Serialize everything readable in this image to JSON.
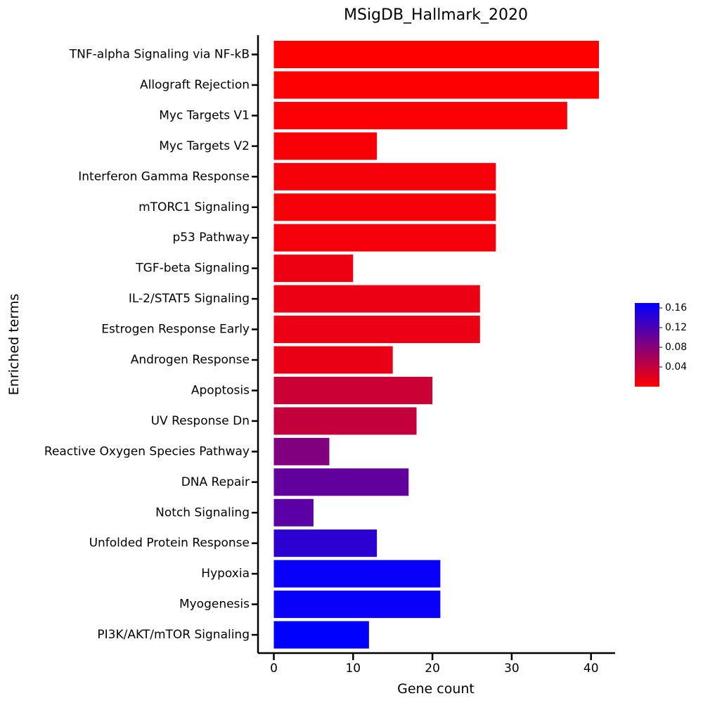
{
  "chart_data": {
    "type": "bar",
    "orientation": "horizontal",
    "title": "MSigDB_Hallmark_2020",
    "xlabel": "Gene count",
    "ylabel": "Enriched terms",
    "xlim": [
      -2,
      43
    ],
    "xticks": [
      0,
      10,
      20,
      30,
      40
    ],
    "grid": false,
    "categories": [
      "TNF-alpha Signaling via NF-kB",
      "Allograft Rejection",
      "Myc Targets V1",
      "Myc Targets V2",
      "Interferon Gamma Response",
      "mTORC1 Signaling",
      "p53 Pathway",
      "TGF-beta Signaling",
      "IL-2/STAT5 Signaling",
      "Estrogen Response Early",
      "Androgen Response",
      "Apoptosis",
      "UV Response Dn",
      "Reactive Oxygen Species Pathway",
      "DNA Repair",
      "Notch Signaling",
      "Unfolded Protein Response",
      "Hypoxia",
      "Myogenesis",
      "PI3K/AKT/mTOR  Signaling"
    ],
    "values": [
      41,
      41,
      37,
      13,
      28,
      28,
      28,
      10,
      26,
      26,
      15,
      20,
      18,
      7,
      17,
      5,
      13,
      21,
      21,
      12
    ],
    "color_values": [
      0.0001,
      0.0005,
      0.002,
      0.004,
      0.006,
      0.006,
      0.007,
      0.012,
      0.013,
      0.013,
      0.014,
      0.035,
      0.04,
      0.085,
      0.105,
      0.11,
      0.14,
      0.165,
      0.165,
      0.17
    ],
    "colorbar": {
      "ticks": [
        0.04,
        0.08,
        0.12,
        0.16
      ],
      "tick_labels": [
        "0.04",
        "0.08",
        "0.12",
        "0.16"
      ],
      "range": [
        0.0,
        0.17
      ],
      "low_color": "#ff0000",
      "high_color": "#0000ff",
      "placement": "right"
    }
  }
}
